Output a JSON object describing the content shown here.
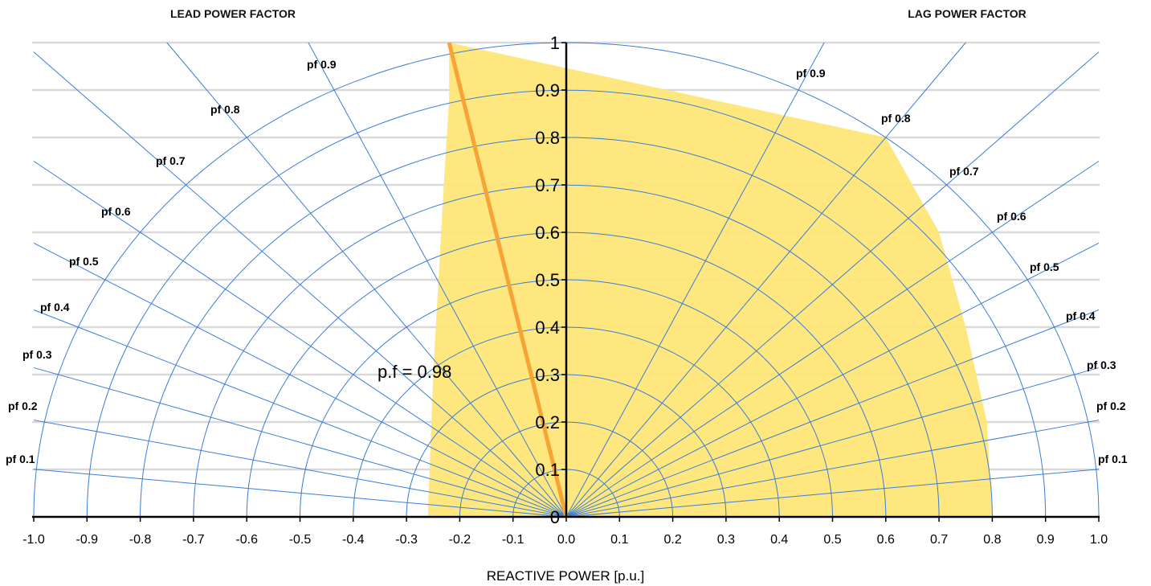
{
  "chart_data": {
    "type": "polar-capability",
    "title_left": "LEAD POWER FACTOR",
    "title_right": "LAG POWER FACTOR",
    "xlabel": "REACTIVE POWER [p.u.]",
    "xlim": [
      -1.0,
      1.0
    ],
    "ylim": [
      0,
      1
    ],
    "x_ticks": [
      "-1.0",
      "-0.9",
      "-0.8",
      "-0.7",
      "-0.6",
      "-0.5",
      "-0.4",
      "-0.3",
      "-0.2",
      "-0.1",
      "0.0",
      "0.1",
      "0.2",
      "0.3",
      "0.4",
      "0.5",
      "0.6",
      "0.7",
      "0.8",
      "0.9",
      "1.0"
    ],
    "y_ticks": [
      "0",
      "0.1",
      "0.2",
      "0.3",
      "0.4",
      "0.5",
      "0.6",
      "0.7",
      "0.8",
      "0.9",
      "1"
    ],
    "grid_horizontal": [
      0.1,
      0.2,
      0.3,
      0.4,
      0.5,
      0.6,
      0.7,
      0.8,
      0.9,
      1.0
    ],
    "radial_circles": [
      0.1,
      0.2,
      0.3,
      0.4,
      0.5,
      0.6,
      0.7,
      0.8,
      0.9,
      1.0
    ],
    "pf_lines": [
      0.1,
      0.2,
      0.3,
      0.4,
      0.5,
      0.6,
      0.7,
      0.8,
      0.9
    ],
    "pf_labels_lead": [
      "pf 0.1",
      "pf 0.2",
      "pf 0.3",
      "pf 0.4",
      "pf 0.5",
      "pf 0.6",
      "pf 0.7",
      "pf 0.8",
      "pf 0.9"
    ],
    "pf_labels_lag": [
      "pf 0.1",
      "pf 0.2",
      "pf 0.3",
      "pf 0.4",
      "pf 0.5",
      "pf 0.6",
      "pf 0.7",
      "pf 0.8",
      "pf 0.9"
    ],
    "capability_region": [
      {
        "q": -0.26,
        "p": 0.0
      },
      {
        "q": -0.25,
        "p": 0.3
      },
      {
        "q": -0.24,
        "p": 0.5
      },
      {
        "q": -0.23,
        "p": 0.7
      },
      {
        "q": -0.22,
        "p": 0.88
      },
      {
        "q": -0.22,
        "p": 0.9
      },
      {
        "q": -0.22,
        "p": 1.0
      },
      {
        "q": 0.6,
        "p": 0.8
      },
      {
        "q": 0.7,
        "p": 0.6
      },
      {
        "q": 0.75,
        "p": 0.4
      },
      {
        "q": 0.79,
        "p": 0.2
      },
      {
        "q": 0.8,
        "p": 0.0
      }
    ],
    "operating_line": {
      "label": "p.f = 0.98",
      "q_end": -0.22,
      "p_end": 1.0
    },
    "colors": {
      "grid": "#d9d9d9",
      "polar": "#3b7dd8",
      "region": "#fde677",
      "operating_line": "#f7a436",
      "axis": "#000000"
    }
  }
}
